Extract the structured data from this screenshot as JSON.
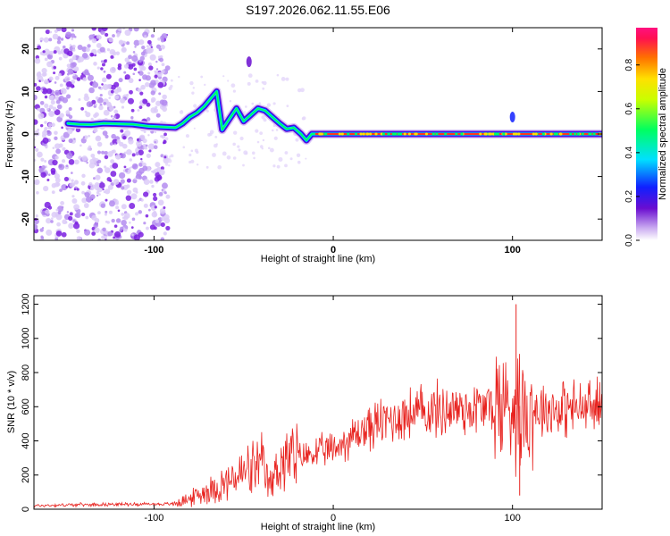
{
  "title": "S197.2026.062.11.55.E06",
  "chart_data": [
    {
      "type": "heatmap",
      "title": "S197.2026.062.11.55.E06",
      "xlabel": "Height of straight line (km)",
      "ylabel": "Frequency (Hz)",
      "xlim": [
        -167,
        150
      ],
      "ylim": [
        -25,
        25
      ],
      "xticks": [
        -100,
        0,
        100
      ],
      "yticks": [
        -20,
        -10,
        0,
        10,
        20
      ],
      "colorbar": {
        "label": "Normalized spectral amplitude",
        "range": [
          0,
          0.97
        ],
        "ticks": [
          0.0,
          0.2,
          0.4,
          0.6,
          0.8
        ]
      },
      "ridge_points": [
        [
          -148,
          2.5
        ],
        [
          -142,
          2.3
        ],
        [
          -135,
          2.2
        ],
        [
          -128,
          2.5
        ],
        [
          -120,
          2.4
        ],
        [
          -112,
          2.3
        ],
        [
          -103,
          1.8
        ],
        [
          -88,
          1.5
        ],
        [
          -84,
          2.5
        ],
        [
          -80,
          4
        ],
        [
          -76,
          5
        ],
        [
          -72,
          6.5
        ],
        [
          -68,
          8.5
        ],
        [
          -65,
          10
        ],
        [
          -62,
          1
        ],
        [
          -58,
          3.5
        ],
        [
          -54,
          6
        ],
        [
          -50,
          3
        ],
        [
          -46,
          4.5
        ],
        [
          -42,
          6
        ],
        [
          -38,
          5.5
        ],
        [
          -34,
          4
        ],
        [
          -30,
          2.5
        ],
        [
          -26,
          1.2
        ],
        [
          -22,
          1.5
        ],
        [
          -18,
          0
        ],
        [
          -15,
          -1.5
        ],
        [
          -12,
          0
        ],
        [
          0,
          0
        ],
        [
          20,
          0
        ],
        [
          40,
          0
        ],
        [
          60,
          0
        ],
        [
          80,
          0
        ],
        [
          90,
          0
        ],
        [
          95,
          0
        ],
        [
          100,
          0
        ],
        [
          120,
          0
        ],
        [
          150,
          0
        ]
      ],
      "isolated_features": [
        {
          "x": -47,
          "y": 17,
          "description": "faint tone"
        },
        {
          "x": 100,
          "y": 4,
          "description": "spike"
        }
      ]
    },
    {
      "type": "line",
      "xlabel": "Height of straight line (km)",
      "ylabel": "SNR (10 * v/v)",
      "xlim": [
        -167,
        150
      ],
      "ylim": [
        0,
        1250
      ],
      "xticks": [
        -100,
        0,
        100
      ],
      "yticks": [
        0,
        200,
        400,
        600,
        800,
        1000,
        1200
      ],
      "color": "#e8231f",
      "series": [
        {
          "name": "SNR",
          "x": [
            -167,
            -150,
            -130,
            -110,
            -90,
            -80,
            -70,
            -60,
            -50,
            -40,
            -35,
            -30,
            -20,
            -10,
            0,
            10,
            20,
            30,
            40,
            50,
            60,
            70,
            80,
            90,
            95,
            100,
            105,
            110,
            120,
            130,
            140,
            150
          ],
          "y": [
            20,
            25,
            28,
            30,
            30,
            60,
            110,
            150,
            210,
            250,
            130,
            280,
            300,
            330,
            350,
            420,
            480,
            520,
            550,
            570,
            580,
            590,
            590,
            600,
            610,
            620,
            600,
            590,
            590,
            590,
            590,
            600
          ]
        }
      ],
      "annotations": [
        {
          "x": 102,
          "y": 1200,
          "description": "max spike"
        },
        {
          "x": 104,
          "y": 80,
          "description": "min dip"
        }
      ]
    }
  ]
}
